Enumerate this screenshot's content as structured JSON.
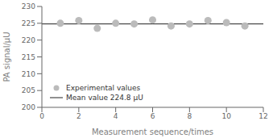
{
  "chart_data": {
    "type": "scatter",
    "xlabel": "Measurement sequence/times",
    "ylabel": "PA signal/μU",
    "x": [
      1,
      2,
      3,
      4,
      5,
      6,
      7,
      8,
      9,
      10,
      11
    ],
    "series": [
      {
        "name": "Experimental values",
        "type": "scatter",
        "marker": "circle",
        "color": "#bbbbbb",
        "values": [
          225.0,
          225.8,
          223.5,
          225.0,
          224.8,
          226.0,
          224.2,
          224.8,
          225.8,
          225.2,
          224.2
        ]
      }
    ],
    "hlines": [
      {
        "name": "Mean value 224.8 μU",
        "y": 224.8,
        "color": "#222222",
        "line_style": "solid"
      }
    ],
    "xlim": [
      0,
      12
    ],
    "ylim": [
      200,
      230
    ],
    "xticks": [
      0,
      2,
      4,
      6,
      8,
      10,
      12
    ],
    "yticks": [
      200,
      205,
      210,
      215,
      220,
      225,
      230
    ],
    "grid": false,
    "legend": "lower left"
  }
}
